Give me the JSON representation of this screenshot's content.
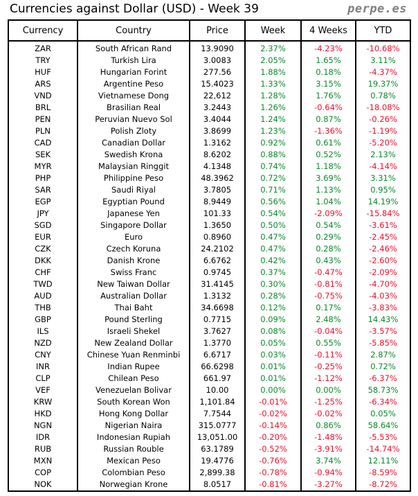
{
  "title": "Currencies against Dollar (USD) - Week 39",
  "brand": "perpe.es",
  "colors": {
    "positive": "#0a8a2a",
    "negative": "#f0102a"
  },
  "columns": [
    "Currency",
    "Country",
    "Price",
    "Week",
    "4 Weeks",
    "YTD"
  ],
  "rows": [
    [
      "ZAR",
      "South African Rand",
      "13.9090",
      "2.37%",
      "-4.23%",
      "-10.68%"
    ],
    [
      "TRY",
      "Turkish Lira",
      "3.0083",
      "2.05%",
      "1.65%",
      "3.11%"
    ],
    [
      "HUF",
      "Hungarian Forint",
      "277.56",
      "1.88%",
      "0.18%",
      "-4.37%"
    ],
    [
      "ARS",
      "Argentine Peso",
      "15.4023",
      "1.33%",
      "3.15%",
      "19.37%"
    ],
    [
      "VND",
      "Vietnamese Dong",
      "22,612",
      "1.28%",
      "1.76%",
      "0.78%"
    ],
    [
      "BRL",
      "Brasilian Real",
      "3.2443",
      "1.26%",
      "-0.64%",
      "-18.08%"
    ],
    [
      "PEN",
      "Peruvian Nuevo Sol",
      "3.4044",
      "1.24%",
      "0.87%",
      "-0.26%"
    ],
    [
      "PLN",
      "Polish Zloty",
      "3.8699",
      "1.23%",
      "-1.36%",
      "-1.19%"
    ],
    [
      "CAD",
      "Canadian Dollar",
      "1.3162",
      "0.92%",
      "0.61%",
      "-5.20%"
    ],
    [
      "SEK",
      "Swedish Krona",
      "8.6202",
      "0.88%",
      "0.52%",
      "2.13%"
    ],
    [
      "MYR",
      "Malaysian Ringgit",
      "4.1348",
      "0.74%",
      "1.18%",
      "-4.14%"
    ],
    [
      "PHP",
      "Philippine Peso",
      "48.3962",
      "0.72%",
      "3.69%",
      "3.31%"
    ],
    [
      "SAR",
      "Saudi Riyal",
      "3.7805",
      "0.71%",
      "1.13%",
      "0.95%"
    ],
    [
      "EGP",
      "Egyptian Pound",
      "8.9449",
      "0.56%",
      "1.04%",
      "14.19%"
    ],
    [
      "JPY",
      "Japanese Yen",
      "101.33",
      "0.54%",
      "-2.09%",
      "-15.84%"
    ],
    [
      "SGD",
      "Singapore Dollar",
      "1.3650",
      "0.50%",
      "0.54%",
      "-3.61%"
    ],
    [
      "EUR",
      "Euro",
      "0.8960",
      "0.47%",
      "0.29%",
      "-2.45%"
    ],
    [
      "CZK",
      "Czech Koruna",
      "24.2102",
      "0.47%",
      "0.28%",
      "-2.46%"
    ],
    [
      "DKK",
      "Danish Krone",
      "6.6762",
      "0.42%",
      "0.43%",
      "-2.60%"
    ],
    [
      "CHF",
      "Swiss Franc",
      "0.9745",
      "0.37%",
      "-0.47%",
      "-2.09%"
    ],
    [
      "TWD",
      "New Taiwan Dollar",
      "31.4145",
      "0.30%",
      "-0.81%",
      "-4.70%"
    ],
    [
      "AUD",
      "Australian Dollar",
      "1.3132",
      "0.28%",
      "-0.75%",
      "-4.03%"
    ],
    [
      "THB",
      "Thai Baht",
      "34.6698",
      "0.12%",
      "0.17%",
      "-3.83%"
    ],
    [
      "GBP",
      "Pound Sterling",
      "0.7715",
      "0.09%",
      "2.48%",
      "14.43%"
    ],
    [
      "ILS",
      "Israeli Shekel",
      "3.7627",
      "0.08%",
      "-0.04%",
      "-3.57%"
    ],
    [
      "NZD",
      "New Zealand Dollar",
      "1.3770",
      "0.05%",
      "0.55%",
      "-5.85%"
    ],
    [
      "CNY",
      "Chinese Yuan Renminbi",
      "6.6717",
      "0.03%",
      "-0.11%",
      "2.87%"
    ],
    [
      "INR",
      "Indian Rupee",
      "66.6298",
      "0.01%",
      "-0.25%",
      "0.72%"
    ],
    [
      "CLP",
      "Chilean Peso",
      "661.97",
      "0.01%",
      "-1.12%",
      "-6.37%"
    ],
    [
      "VEF",
      "Venezuelan Bolivar",
      "10.00",
      "0.00%",
      "0.00%",
      "58.73%"
    ],
    [
      "KRW",
      "South Korean Won",
      "1,101.84",
      "-0.01%",
      "-1.25%",
      "-6.34%"
    ],
    [
      "HKD",
      "Hong Kong Dollar",
      "7.7544",
      "-0.02%",
      "-0.02%",
      "0.05%"
    ],
    [
      "NGN",
      "Nigerian Naira",
      "315.0777",
      "-0.14%",
      "0.86%",
      "58.64%"
    ],
    [
      "IDR",
      "Indonesian Rupiah",
      "13,051.00",
      "-0.20%",
      "-1.48%",
      "-5.53%"
    ],
    [
      "RUB",
      "Russian Rouble",
      "63.1789",
      "-0.52%",
      "-3.91%",
      "-14.74%"
    ],
    [
      "MXN",
      "Mexican Peso",
      "19.4776",
      "-0.76%",
      "3.74%",
      "12.11%"
    ],
    [
      "COP",
      "Colombian Peso",
      "2,899.38",
      "-0.78%",
      "-0.94%",
      "-8.59%"
    ],
    [
      "NOK",
      "Norwegian Krone",
      "8.0517",
      "-0.81%",
      "-3.27%",
      "-8.72%"
    ]
  ]
}
